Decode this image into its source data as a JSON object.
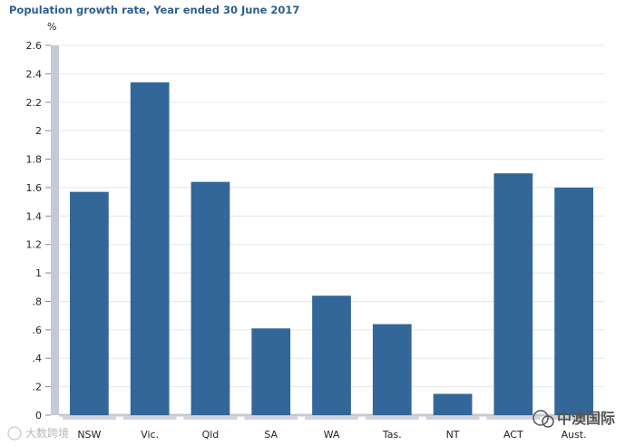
{
  "chart_data": {
    "type": "bar",
    "title": "Population growth rate, Year ended 30 June 2017",
    "ylabel": "%",
    "xlabel": "",
    "categories": [
      "NSW",
      "Vic.",
      "Qld",
      "SA",
      "WA",
      "Tas.",
      "NT",
      "ACT",
      "Aust."
    ],
    "values": [
      1.57,
      2.34,
      1.64,
      0.61,
      0.84,
      0.64,
      0.15,
      1.7,
      1.6
    ],
    "ylim": [
      0,
      2.6
    ],
    "yticks": [
      0,
      0.2,
      0.4,
      0.6,
      0.8,
      1,
      1.2,
      1.4,
      1.6,
      1.8,
      2,
      2.2,
      2.4,
      2.6
    ],
    "ytick_labels": [
      "0",
      ".2",
      ".4",
      ".6",
      ".8",
      "1",
      "1.2",
      "1.4",
      "1.6",
      "1.8",
      "2",
      "2.2",
      "2.4",
      "2.6"
    ],
    "grid": true,
    "bar_color": "#336699"
  },
  "watermarks": {
    "left": "大数跨境",
    "right": "中澳国际"
  }
}
